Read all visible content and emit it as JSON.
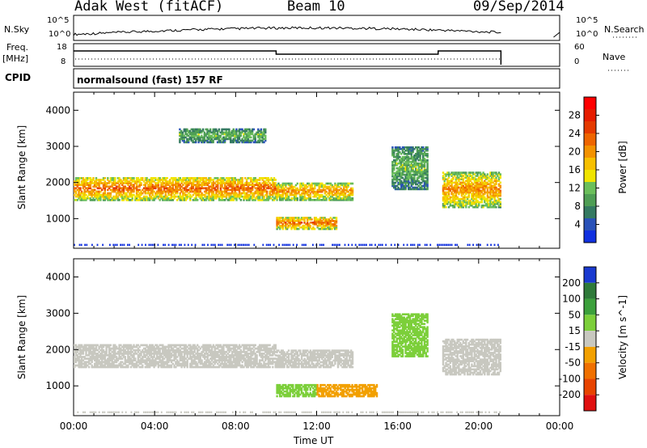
{
  "header": {
    "station": "Adak West (fitACF)",
    "beam": "Beam 10",
    "date": "09/Sep/2014"
  },
  "strips": {
    "nsky_label": "N.Sky",
    "nsearch_label": "N.Search",
    "freq_label": "Freq.",
    "freq_unit": "[MHz]",
    "nave_label": "Nave",
    "cpid_label": "CPID",
    "cpid_text": "normalsound (fast) 157 RF",
    "noise_ticks": [
      "10^5",
      "10^0"
    ],
    "freq_ticks": [
      "18",
      "8"
    ],
    "nave_ticks": [
      "60",
      "0"
    ]
  },
  "chart_data": [
    {
      "type": "heatmap",
      "panel": "power",
      "xlabel": "Time UT",
      "ylabel": "Slant Range [km]",
      "xlim": [
        0,
        24
      ],
      "ylim": [
        180,
        4500
      ],
      "x_ticks": [
        "00:00",
        "04:00",
        "08:00",
        "12:00",
        "16:00",
        "20:00",
        "00:00"
      ],
      "y_ticks": [
        1000,
        2000,
        3000,
        4000
      ],
      "colorbar": {
        "label": "Power [dB]",
        "ticks": [
          4,
          8,
          12,
          16,
          20,
          24,
          28
        ],
        "range": [
          0,
          32
        ],
        "colors": [
          "#1030e0",
          "#2a52b8",
          "#357a62",
          "#4f9e55",
          "#6bbf5b",
          "#f0e400",
          "#f7c000",
          "#f39200",
          "#ee6500",
          "#e53a00",
          "#e61c00",
          "#ff0000"
        ]
      },
      "echo_regions": [
        {
          "t_start": 0.0,
          "t_end": 10.0,
          "r_start": 1500,
          "r_end": 2150,
          "power": 20
        },
        {
          "t_start": 10.0,
          "t_end": 13.8,
          "r_start": 1500,
          "r_end": 2000,
          "power": 18
        },
        {
          "t_start": 10.0,
          "t_end": 13.0,
          "r_start": 700,
          "r_end": 1050,
          "power": 20
        },
        {
          "t_start": 5.2,
          "t_end": 9.5,
          "r_start": 3100,
          "r_end": 3500,
          "power": 10
        },
        {
          "t_start": 15.7,
          "t_end": 17.5,
          "r_start": 1800,
          "r_end": 3000,
          "power": 10
        },
        {
          "t_start": 18.2,
          "t_end": 21.1,
          "r_start": 1300,
          "r_end": 2300,
          "power": 18
        }
      ]
    },
    {
      "type": "heatmap",
      "panel": "velocity",
      "xlabel": "Time UT",
      "ylabel": "Slant Range [km]",
      "xlim": [
        0,
        24
      ],
      "ylim": [
        180,
        4500
      ],
      "x_ticks": [
        "00:00",
        "04:00",
        "08:00",
        "12:00",
        "16:00",
        "20:00",
        "00:00"
      ],
      "y_ticks": [
        1000,
        2000,
        3000,
        4000
      ],
      "colorbar": {
        "label": "Velocity [m s^-1]",
        "ticks": [
          200,
          100,
          50,
          15,
          -15,
          -50,
          -100,
          -200
        ],
        "colors": [
          "#1a3ad0",
          "#2f7a3a",
          "#3ca03c",
          "#7ccf3a",
          "#c8c8c0",
          "#f2a000",
          "#f07000",
          "#e84400",
          "#e01010"
        ]
      },
      "echo_regions": [
        {
          "t_start": 0.0,
          "t_end": 10.0,
          "r_start": 1500,
          "r_end": 2150,
          "velocity": 0
        },
        {
          "t_start": 10.0,
          "t_end": 13.8,
          "r_start": 1500,
          "r_end": 2000,
          "velocity": 0
        },
        {
          "t_start": 10.0,
          "t_end": 12.0,
          "r_start": 700,
          "r_end": 1050,
          "velocity": 40
        },
        {
          "t_start": 12.0,
          "t_end": 15.0,
          "r_start": 700,
          "r_end": 1050,
          "velocity": -40
        },
        {
          "t_start": 15.7,
          "t_end": 17.5,
          "r_start": 1800,
          "r_end": 3000,
          "velocity": 40
        },
        {
          "t_start": 18.2,
          "t_end": 21.1,
          "r_start": 1300,
          "r_end": 2300,
          "velocity": 0
        }
      ]
    }
  ]
}
